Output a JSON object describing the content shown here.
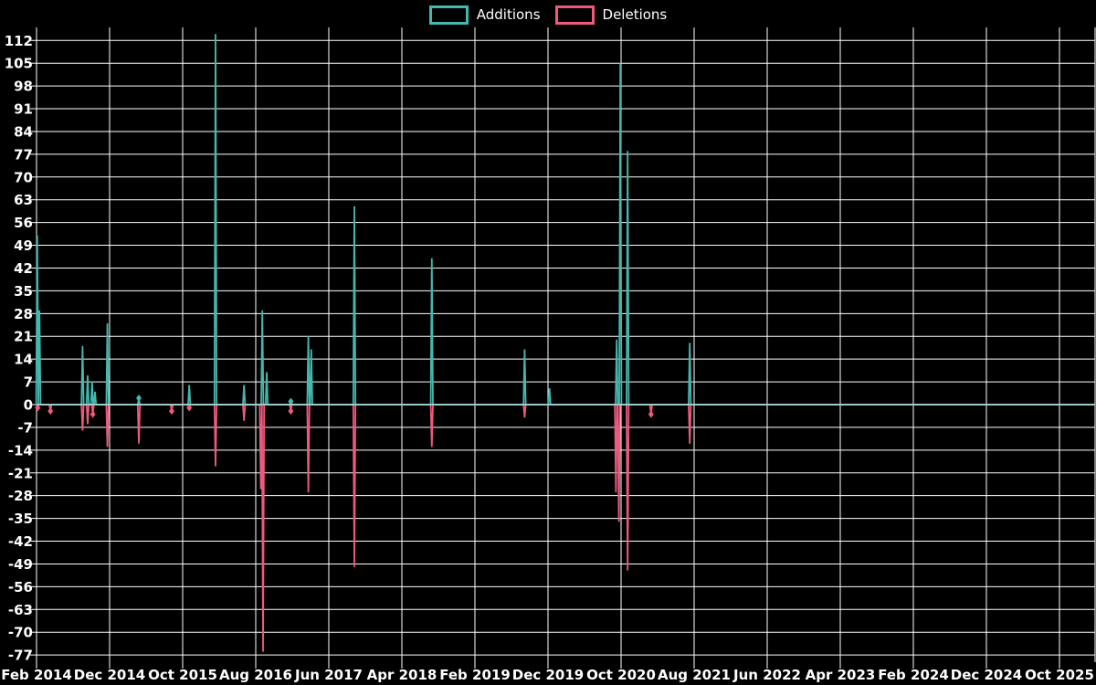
{
  "chart_data": {
    "type": "line",
    "title": "",
    "legend_position": "top-center",
    "background_color": "#000000",
    "grid": true,
    "grid_color": "#ffffff",
    "text_color": "#ffffff",
    "zero_line_color": "#8fb9b4",
    "legend": [
      {
        "label": "Additions",
        "color": "#45b8ae"
      },
      {
        "label": "Deletions",
        "color": "#f0597f"
      }
    ],
    "y_axis": {
      "max": 112,
      "min": -77,
      "step": 7,
      "tick_labels": [
        112,
        105,
        98,
        91,
        84,
        77,
        70,
        63,
        56,
        49,
        42,
        35,
        28,
        21,
        14,
        7,
        0,
        -7,
        -14,
        -21,
        -28,
        -35,
        -42,
        -49,
        -56,
        -63,
        -70,
        -77
      ]
    },
    "x_axis": {
      "tick_labels": [
        "Feb 2014",
        "Dec 2014",
        "Oct 2015",
        "Aug 2016",
        "Jun 2017",
        "Apr 2018",
        "Feb 2019",
        "Dec 2019",
        "Oct 2020",
        "Aug 2021",
        "Jun 2022",
        "Apr 2023",
        "Feb 2024",
        "Dec 2024",
        "Oct 2025"
      ],
      "months_between_ticks": 10,
      "start_label": "Feb 2014",
      "unit": "months_since_start"
    },
    "series": [
      {
        "name": "Additions",
        "color": "#45b8ae",
        "baseline": 0,
        "spikes": [
          {
            "m": 0.1,
            "v": 52
          },
          {
            "m": 0.4,
            "v": 29
          },
          {
            "m": 6.3,
            "v": 18
          },
          {
            "m": 7.0,
            "v": 9
          },
          {
            "m": 7.6,
            "v": 7
          },
          {
            "m": 8.0,
            "v": 4
          },
          {
            "m": 9.7,
            "v": 25
          },
          {
            "m": 14.0,
            "v": 2
          },
          {
            "m": 20.9,
            "v": 6
          },
          {
            "m": 24.5,
            "v": 114
          },
          {
            "m": 28.4,
            "v": 6
          },
          {
            "m": 30.9,
            "v": 29
          },
          {
            "m": 31.5,
            "v": 10
          },
          {
            "m": 34.8,
            "v": 1
          },
          {
            "m": 37.2,
            "v": 21
          },
          {
            "m": 37.6,
            "v": 17
          },
          {
            "m": 43.5,
            "v": 61
          },
          {
            "m": 54.1,
            "v": 45
          },
          {
            "m": 66.8,
            "v": 17
          },
          {
            "m": 70.2,
            "v": 5
          },
          {
            "m": 79.4,
            "v": 20
          },
          {
            "m": 79.9,
            "v": 105
          },
          {
            "m": 80.9,
            "v": 78
          },
          {
            "m": 89.4,
            "v": 19
          }
        ]
      },
      {
        "name": "Deletions",
        "color": "#f0597f",
        "baseline": 0,
        "spikes": [
          {
            "m": 0.15,
            "v": -1
          },
          {
            "m": 1.9,
            "v": -2
          },
          {
            "m": 6.3,
            "v": -8
          },
          {
            "m": 7.0,
            "v": -6
          },
          {
            "m": 7.7,
            "v": -3
          },
          {
            "m": 9.7,
            "v": -13
          },
          {
            "m": 14.0,
            "v": -12
          },
          {
            "m": 18.5,
            "v": -2
          },
          {
            "m": 20.9,
            "v": -1
          },
          {
            "m": 24.5,
            "v": -19
          },
          {
            "m": 28.4,
            "v": -5
          },
          {
            "m": 30.7,
            "v": -26
          },
          {
            "m": 31.0,
            "v": -76
          },
          {
            "m": 34.8,
            "v": -2
          },
          {
            "m": 37.2,
            "v": -27
          },
          {
            "m": 43.5,
            "v": -50
          },
          {
            "m": 54.1,
            "v": -13
          },
          {
            "m": 66.8,
            "v": -4
          },
          {
            "m": 79.3,
            "v": -27
          },
          {
            "m": 79.7,
            "v": -36
          },
          {
            "m": 80.9,
            "v": -51
          },
          {
            "m": 84.1,
            "v": -3
          },
          {
            "m": 89.4,
            "v": -12
          }
        ]
      }
    ]
  }
}
